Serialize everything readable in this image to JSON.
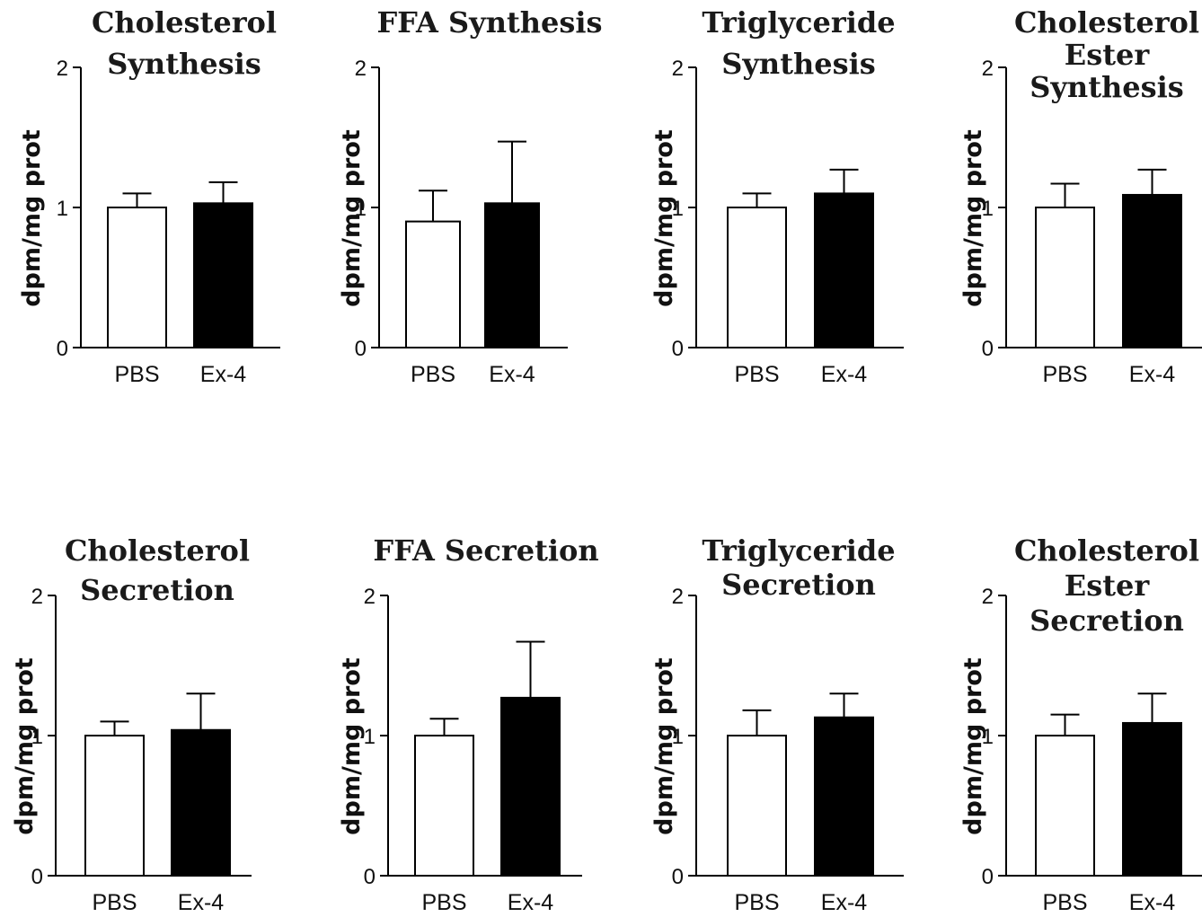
{
  "chart_data": [
    {
      "type": "bar",
      "title": "Cholesterol Synthesis",
      "title_lines": [
        "Cholesterol",
        "Synthesis"
      ],
      "ylabel": "dpm/mg prot",
      "categories": [
        "PBS",
        "Ex-4"
      ],
      "values": [
        1.0,
        1.03
      ],
      "errors": [
        0.1,
        0.15
      ],
      "bar_colors": [
        "#ffffff",
        "#000000"
      ],
      "ylim": [
        0,
        2
      ],
      "yticks": [
        0,
        1,
        2
      ]
    },
    {
      "type": "bar",
      "title": "FFA Synthesis",
      "title_lines": [
        "FFA Synthesis"
      ],
      "ylabel": "dpm/mg prot",
      "categories": [
        "PBS",
        "Ex-4"
      ],
      "values": [
        0.9,
        1.03
      ],
      "errors": [
        0.22,
        0.44
      ],
      "bar_colors": [
        "#ffffff",
        "#000000"
      ],
      "ylim": [
        0,
        2
      ],
      "yticks": [
        0,
        1,
        2
      ]
    },
    {
      "type": "bar",
      "title": "Triglyceride Synthesis",
      "title_lines": [
        "Triglyceride",
        "Synthesis"
      ],
      "ylabel": "dpm/mg prot",
      "categories": [
        "PBS",
        "Ex-4"
      ],
      "values": [
        1.0,
        1.1
      ],
      "errors": [
        0.1,
        0.17
      ],
      "bar_colors": [
        "#ffffff",
        "#000000"
      ],
      "ylim": [
        0,
        2
      ],
      "yticks": [
        0,
        1,
        2
      ]
    },
    {
      "type": "bar",
      "title": "Cholesterol Ester Synthesis",
      "title_lines": [
        "Cholesterol",
        "Ester",
        "Synthesis"
      ],
      "ylabel": "dpm/mg prot",
      "categories": [
        "PBS",
        "Ex-4"
      ],
      "values": [
        1.0,
        1.09
      ],
      "errors": [
        0.17,
        0.18
      ],
      "bar_colors": [
        "#ffffff",
        "#000000"
      ],
      "ylim": [
        0,
        2
      ],
      "yticks": [
        0,
        1,
        2
      ]
    },
    {
      "type": "bar",
      "title": "Cholesterol Secretion",
      "title_lines": [
        "Cholesterol",
        "Secretion"
      ],
      "ylabel": "dpm/mg prot",
      "categories": [
        "PBS",
        "Ex-4"
      ],
      "values": [
        1.0,
        1.04
      ],
      "errors": [
        0.1,
        0.26
      ],
      "bar_colors": [
        "#ffffff",
        "#000000"
      ],
      "ylim": [
        0,
        2
      ],
      "yticks": [
        0,
        1,
        2
      ]
    },
    {
      "type": "bar",
      "title": "FFA Secretion",
      "title_lines": [
        "FFA Secretion"
      ],
      "ylabel": "dpm/mg prot",
      "categories": [
        "PBS",
        "Ex-4"
      ],
      "values": [
        1.0,
        1.27
      ],
      "errors": [
        0.12,
        0.4
      ],
      "bar_colors": [
        "#ffffff",
        "#000000"
      ],
      "ylim": [
        0,
        2
      ],
      "yticks": [
        0,
        1,
        2
      ]
    },
    {
      "type": "bar",
      "title": "Triglyceride Secretion",
      "title_lines": [
        "Triglyceride",
        "Secretion"
      ],
      "ylabel": "dpm/mg prot",
      "categories": [
        "PBS",
        "Ex-4"
      ],
      "values": [
        1.0,
        1.13
      ],
      "errors": [
        0.18,
        0.17
      ],
      "bar_colors": [
        "#ffffff",
        "#000000"
      ],
      "ylim": [
        0,
        2
      ],
      "yticks": [
        0,
        1,
        2
      ]
    },
    {
      "type": "bar",
      "title": "Cholesterol Ester Secretion",
      "title_lines": [
        "Cholesterol",
        "Ester",
        "Secretion"
      ],
      "ylabel": "dpm/mg prot",
      "categories": [
        "PBS",
        "Ex-4"
      ],
      "values": [
        1.0,
        1.09
      ],
      "errors": [
        0.15,
        0.21
      ],
      "bar_colors": [
        "#ffffff",
        "#000000"
      ],
      "ylim": [
        0,
        2
      ],
      "yticks": [
        0,
        1,
        2
      ]
    }
  ]
}
